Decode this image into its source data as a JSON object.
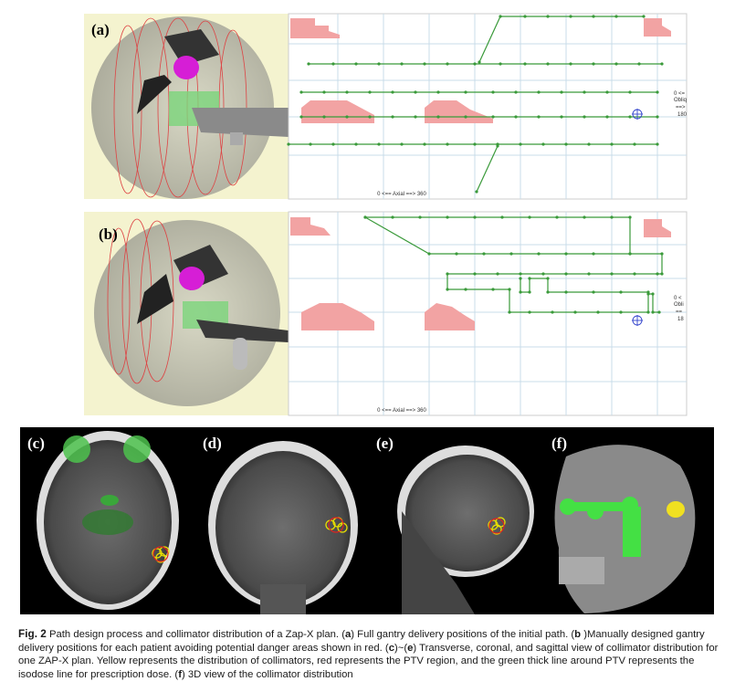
{
  "panels": {
    "a": {
      "label": "(a)",
      "axis_label": "0 <== Axial ==> 360",
      "side_labels": [
        "0 <=",
        "Obliq",
        "==>",
        "180"
      ]
    },
    "b": {
      "label": "(b)",
      "axis_label": "0 <== Axial ==> 360",
      "side_labels": [
        "0 <",
        "Obli",
        "==",
        "18"
      ]
    },
    "c": {
      "label": "(c)"
    },
    "d": {
      "label": "(d)"
    },
    "e": {
      "label": "(e)"
    },
    "f": {
      "label": "(f)"
    }
  },
  "caption": {
    "parts": [
      {
        "text": "Fig. 2",
        "bold": true
      },
      {
        "text": "  Path design process and collimator distribution of a Zap-X plan. (",
        "bold": false
      },
      {
        "text": "a",
        "bold": true
      },
      {
        "text": ") Full gantry delivery positions of the initial path. (",
        "bold": false
      },
      {
        "text": "b",
        "bold": true
      },
      {
        "text": " )Manually designed gantry delivery positions for each patient avoiding potential danger areas shown in red. (",
        "bold": false
      },
      {
        "text": "c",
        "bold": true
      },
      {
        "text": ")~(",
        "bold": false
      },
      {
        "text": "e",
        "bold": true
      },
      {
        "text": ") Transverse, coronal, and sagittal view of collimator distribution for one ZAP-X plan. Yellow represents the distribution of collimators, red represents the PTV region, and the green thick line around PTV represents the isodose line for prescription dose. (",
        "bold": false
      },
      {
        "text": "f",
        "bold": true
      },
      {
        "text": ") 3D view of the collimator distribution",
        "bold": false
      }
    ]
  }
}
